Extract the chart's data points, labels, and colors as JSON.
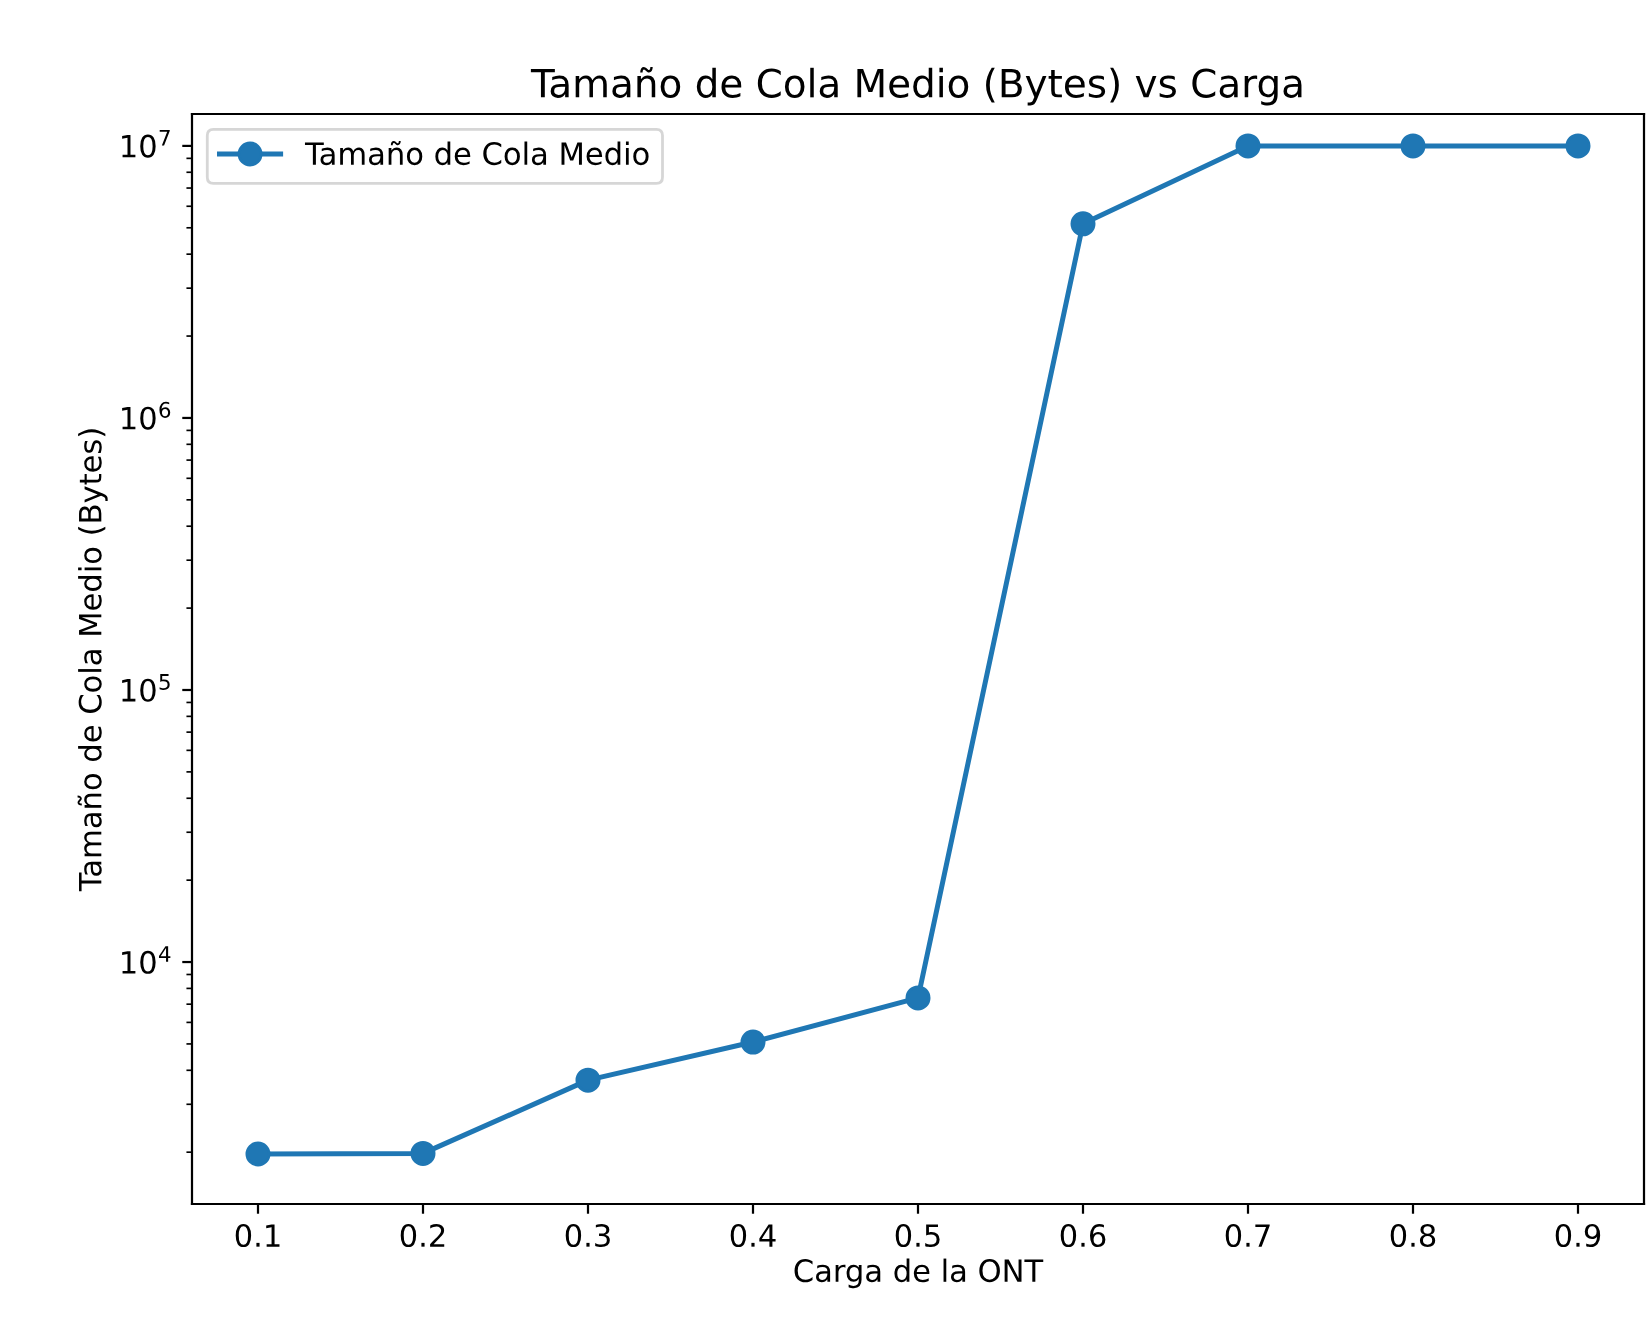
{
  "chart_data": {
    "type": "line",
    "title": "Tamaño de Cola Medio (Bytes) vs Carga",
    "xlabel": "Carga de la ONT",
    "ylabel": "Tamaño de Cola Medio (Bytes)",
    "x": [
      0.1,
      0.2,
      0.3,
      0.4,
      0.5,
      0.6,
      0.7,
      0.8,
      0.9
    ],
    "series": [
      {
        "name": "Tamaño de Cola Medio",
        "color": "#1f77b4",
        "values": [
          1970,
          1980,
          3680,
          5080,
          7380,
          5170000,
          10000000,
          10000000,
          10000000
        ]
      }
    ],
    "log": "y",
    "xlim": [
      0.06,
      0.94
    ],
    "xticks": [
      0.1,
      0.2,
      0.3,
      0.4,
      0.5,
      0.6,
      0.7,
      0.8,
      0.9
    ],
    "ylim": [
      1290,
      13100000
    ],
    "yticks": [
      {
        "value": 10000,
        "label": "10$^{4}$"
      },
      {
        "value": 100000,
        "label": "10$^{5}$"
      },
      {
        "value": 1000000,
        "label": "10$^{6}$"
      },
      {
        "value": 10000000,
        "label": "10$^{7}$"
      }
    ],
    "marker": "circle",
    "line_style": "solid",
    "legend": "top left",
    "grid": false
  }
}
